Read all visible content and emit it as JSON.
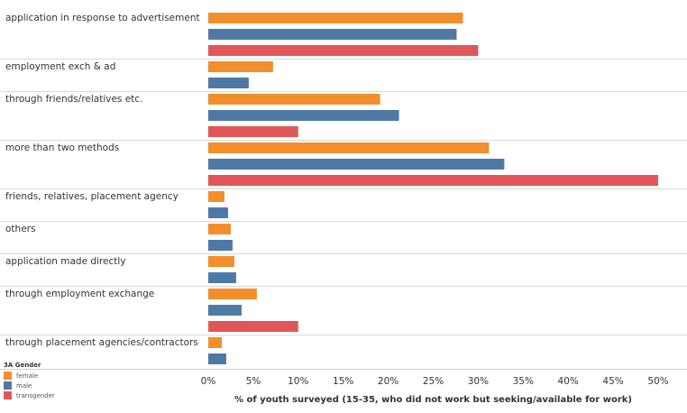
{
  "chart_data": {
    "type": "bar",
    "orientation": "horizontal",
    "categories": [
      "application in response to advertisement",
      "employment exch & ad",
      "through friends/relatives etc.",
      "more than two methods",
      "friends, relatives, placement agency",
      "others",
      "application made directly",
      "through employment exchange",
      "through placement agencies/contractors"
    ],
    "series": [
      {
        "name": "female",
        "color": "#f28e2b",
        "values": [
          28.3,
          7.2,
          19.1,
          31.2,
          1.8,
          2.5,
          2.9,
          5.4,
          1.5
        ]
      },
      {
        "name": "male",
        "color": "#4e79a7",
        "values": [
          27.6,
          4.5,
          21.2,
          32.9,
          2.2,
          2.7,
          3.1,
          3.7,
          2.0
        ]
      },
      {
        "name": "transgender",
        "color": "#e15759",
        "values": [
          30.0,
          null,
          10.0,
          50.0,
          null,
          null,
          null,
          10.0,
          null
        ]
      }
    ],
    "xlabel": "% of youth surveyed (15-35, who did not work but seeking/available for work)",
    "ylabel": "",
    "xlim": [
      0,
      50
    ],
    "xticks": [
      0,
      5,
      10,
      15,
      20,
      25,
      30,
      35,
      40,
      45,
      50
    ],
    "tick_labels": [
      "0%",
      "5%",
      "10%",
      "15%",
      "20%",
      "25%",
      "30%",
      "35%",
      "40%",
      "45%",
      "50%"
    ],
    "legend_title": "3A Gender",
    "legend_position": "bottom-left",
    "grid": false
  }
}
